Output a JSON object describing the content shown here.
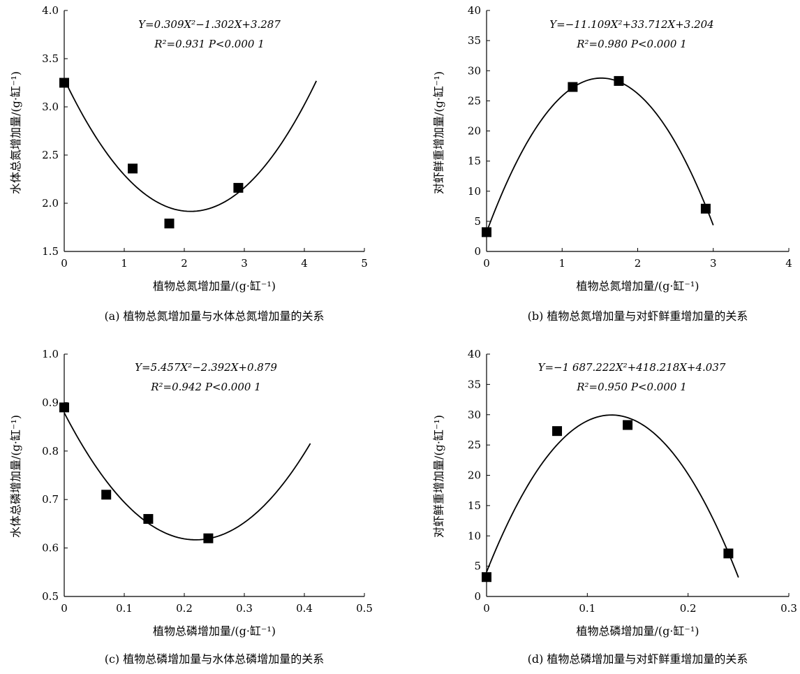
{
  "chart_data": [
    {
      "type": "scatter",
      "panel": "a",
      "equation": "Y=0.309X²−1.302X+3.287",
      "stats": "R²=0.931  P<0.000 1",
      "xlabel": "植物总氮增加量/(g·缸⁻¹)",
      "ylabel": "水体总氮增加量/(g·缸⁻¹)",
      "caption": "(a) 植物总氮增加量与水体总氮增加量的关系",
      "xlim": [
        0,
        5
      ],
      "ylim": [
        1.5,
        4.0
      ],
      "xticks": [
        "0",
        "1",
        "2",
        "3",
        "4",
        "5"
      ],
      "yticks": [
        "1.5",
        "2.0",
        "2.5",
        "3.0",
        "3.5",
        "4.0"
      ],
      "points": [
        {
          "x": 0,
          "y": 3.25
        },
        {
          "x": 1.14,
          "y": 2.36
        },
        {
          "x": 1.75,
          "y": 1.79
        },
        {
          "x": 2.9,
          "y": 2.16
        }
      ],
      "fit": {
        "a": 0.309,
        "b": -1.302,
        "c": 3.287,
        "xrange": [
          0,
          4.2
        ]
      }
    },
    {
      "type": "scatter",
      "panel": "b",
      "equation": "Y=−11.109X²+33.712X+3.204",
      "stats": "R²=0.980  P<0.000 1",
      "xlabel": "植物总氮增加量/(g·缸⁻¹)",
      "ylabel": "对虾鲜重增加量/(g·缸⁻¹)",
      "caption": "(b) 植物总氮增加量与对虾鲜重增加量的关系",
      "xlim": [
        0,
        4
      ],
      "ylim": [
        0,
        40
      ],
      "xticks": [
        "0",
        "1",
        "2",
        "3",
        "4"
      ],
      "yticks": [
        "0",
        "5",
        "10",
        "15",
        "20",
        "25",
        "30",
        "35",
        "40"
      ],
      "points": [
        {
          "x": 0,
          "y": 3.2
        },
        {
          "x": 1.14,
          "y": 27.3
        },
        {
          "x": 1.75,
          "y": 28.3
        },
        {
          "x": 2.9,
          "y": 7.1
        }
      ],
      "fit": {
        "a": -11.109,
        "b": 33.712,
        "c": 3.204,
        "xrange": [
          0,
          3.0
        ]
      }
    },
    {
      "type": "scatter",
      "panel": "c",
      "equation": "Y=5.457X²−2.392X+0.879",
      "stats": "R²=0.942  P<0.000 1",
      "xlabel": "植物总磷增加量/(g·缸⁻¹)",
      "ylabel": "水体总磷增加量/(g·缸⁻¹)",
      "caption": "(c) 植物总磷增加量与水体总磷增加量的关系",
      "xlim": [
        0,
        0.5
      ],
      "ylim": [
        0.5,
        1.0
      ],
      "xticks": [
        "0",
        "0.1",
        "0.2",
        "0.3",
        "0.4",
        "0.5"
      ],
      "yticks": [
        "0.5",
        "0.6",
        "0.7",
        "0.8",
        "0.9",
        "1.0"
      ],
      "points": [
        {
          "x": 0,
          "y": 0.89
        },
        {
          "x": 0.07,
          "y": 0.71
        },
        {
          "x": 0.14,
          "y": 0.66
        },
        {
          "x": 0.24,
          "y": 0.62
        }
      ],
      "fit": {
        "a": 5.457,
        "b": -2.392,
        "c": 0.879,
        "xrange": [
          0,
          0.41
        ]
      }
    },
    {
      "type": "scatter",
      "panel": "d",
      "equation": "Y=−1 687.222X²+418.218X+4.037",
      "stats": "R²=0.950  P<0.000 1",
      "xlabel": "植物总磷增加量/(g·缸⁻¹)",
      "ylabel": "对虾鲜重增加量/(g·缸⁻¹)",
      "caption": "(d) 植物总磷增加量与对虾鲜重增加量的关系",
      "xlim": [
        0,
        0.3
      ],
      "ylim": [
        0,
        40
      ],
      "xticks": [
        "0",
        "0.1",
        "0.2",
        "0.3"
      ],
      "yticks": [
        "0",
        "5",
        "10",
        "15",
        "20",
        "25",
        "30",
        "35",
        "40"
      ],
      "points": [
        {
          "x": 0,
          "y": 3.2
        },
        {
          "x": 0.07,
          "y": 27.3
        },
        {
          "x": 0.14,
          "y": 28.3
        },
        {
          "x": 0.24,
          "y": 7.1
        }
      ],
      "fit": {
        "a": -1687.222,
        "b": 418.218,
        "c": 4.037,
        "xrange": [
          0,
          0.25
        ]
      }
    }
  ]
}
